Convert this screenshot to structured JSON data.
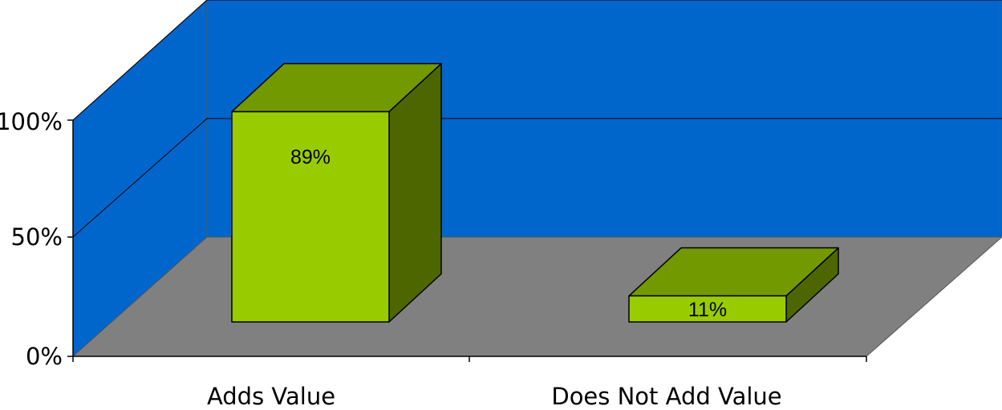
{
  "chart_data": {
    "type": "bar",
    "style": "3d-column",
    "categories": [
      "Adds Value",
      "Does Not Add Value"
    ],
    "values": [
      89,
      11
    ],
    "data_labels": [
      "89%",
      "11%"
    ],
    "y_ticks": [
      "0%",
      "50%",
      "100%"
    ],
    "ylim": [
      0,
      100
    ],
    "title": "",
    "xlabel": "",
    "ylabel": "",
    "grid": true,
    "legend": "none"
  },
  "colors": {
    "wall": "#0066CC",
    "floor": "#808080",
    "bar_front": "#99CC00",
    "bar_top": "#739900",
    "bar_side": "#4D6600",
    "gridline": "#000000"
  }
}
